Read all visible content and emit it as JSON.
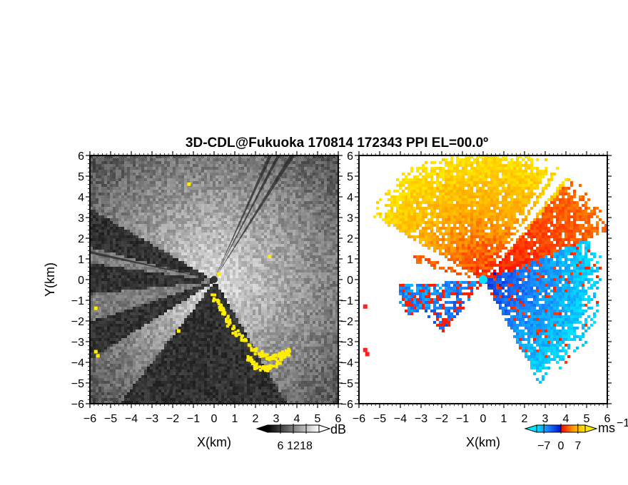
{
  "chart_data": {
    "title": "3D-CDL@Fukuoka 170814 172343 PPI EL=00.0º",
    "panels": [
      {
        "name": "snr",
        "type": "heatmap",
        "xlabel": "X(km)",
        "ylabel": "Y(km)",
        "xlim": [
          -6,
          6
        ],
        "ylim": [
          -6,
          6
        ],
        "xticks": [
          -6,
          -5,
          -4,
          -3,
          -2,
          -1,
          0,
          1,
          2,
          3,
          4,
          5,
          6
        ],
        "yticks": [
          -6,
          -5,
          -4,
          -3,
          -2,
          -1,
          0,
          1,
          2,
          3,
          4,
          5,
          6
        ],
        "xticklabels": [
          "−6",
          "−5",
          "−4",
          "−3",
          "−2",
          "−1",
          "0",
          "1",
          "2",
          "3",
          "4",
          "5",
          "6"
        ],
        "yticklabels": [
          "−6",
          "−5",
          "−4",
          "−3",
          "−2",
          "−1",
          "0",
          "1",
          "2",
          "3",
          "4",
          "5",
          "6"
        ],
        "colorbar": {
          "label": "dB",
          "ticks": [
            6,
            12,
            18
          ],
          "ticklabels": [
            "6",
            "12",
            "18"
          ],
          "range": [
            0,
            24
          ],
          "colors": [
            "#000000",
            "#ffffff"
          ]
        },
        "flag_color": "#ffee00"
      },
      {
        "name": "velocity",
        "type": "heatmap",
        "xlabel": "X(km)",
        "xlim": [
          -6,
          6
        ],
        "ylim": [
          -6,
          6
        ],
        "xticks": [
          -6,
          -5,
          -4,
          -3,
          -2,
          -1,
          0,
          1,
          2,
          3,
          4,
          5,
          6
        ],
        "yticks": [
          -6,
          -5,
          -4,
          -3,
          -2,
          -1,
          0,
          1,
          2,
          3,
          4,
          5,
          6
        ],
        "xticklabels": [
          "−6",
          "−5",
          "−4",
          "−3",
          "−2",
          "−1",
          "0",
          "1",
          "2",
          "3",
          "4",
          "5",
          "6"
        ],
        "yticklabels": [
          "−6",
          "−5",
          "−4",
          "−3",
          "−2",
          "−1",
          "0",
          "1",
          "2",
          "3",
          "4",
          "5",
          "6"
        ],
        "colorbar": {
          "label": "ms",
          "label_exponent": "−1",
          "ticks": [
            -7,
            0,
            7
          ],
          "ticklabels": [
            "−7",
            "0",
            "7"
          ],
          "range": [
            -10,
            10
          ],
          "colors": [
            "#00e5ff",
            "#1a7cff",
            "#0010c8",
            "#ff0000",
            "#ff9a00",
            "#ffe800"
          ]
        }
      }
    ]
  }
}
